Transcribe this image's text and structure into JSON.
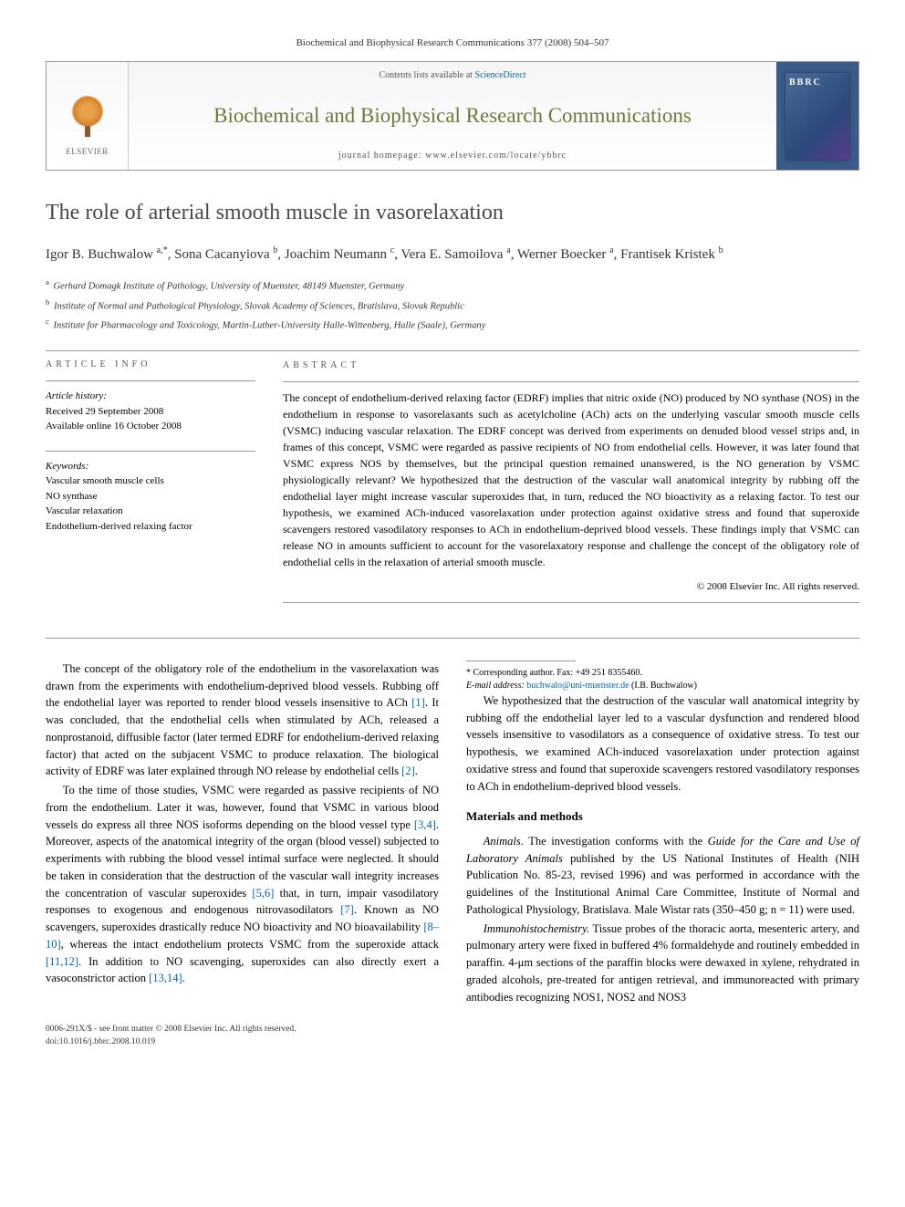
{
  "header_citation": "Biochemical and Biophysical Research Communications 377 (2008) 504–507",
  "banner": {
    "contents_prefix": "Contents lists available at ",
    "contents_link": "ScienceDirect",
    "journal_title": "Biochemical and Biophysical Research Communications",
    "homepage_prefix": "journal homepage: ",
    "homepage_url": "www.elsevier.com/locate/ybbrc",
    "publisher": "ELSEVIER",
    "cover_label": "BBRC"
  },
  "article": {
    "title": "The role of arterial smooth muscle in vasorelaxation",
    "authors_html": "Igor B. Buchwalow <sup>a,*</sup>, Sona Cacanyiova <sup>b</sup>, Joachim Neumann <sup>c</sup>, Vera E. Samoilova <sup>a</sup>, Werner Boecker <sup>a</sup>, Frantisek Kristek <sup>b</sup>",
    "affiliations": [
      {
        "sup": "a",
        "text": "Gerhard Domagk Institute of Pathology, University of Muenster, 48149 Muenster, Germany"
      },
      {
        "sup": "b",
        "text": "Institute of Normal and Pathological Physiology, Slovak Academy of Sciences, Bratislava, Slovak Republic"
      },
      {
        "sup": "c",
        "text": "Institute for Pharmacology and Toxicology, Martin-Luther-University Halle-Wittenberg, Halle (Saale), Germany"
      }
    ]
  },
  "info": {
    "heading": "ARTICLE INFO",
    "history_label": "Article history:",
    "received": "Received 29 September 2008",
    "online": "Available online 16 October 2008",
    "keywords_label": "Keywords:",
    "keywords": [
      "Vascular smooth muscle cells",
      "NO synthase",
      "Vascular relaxation",
      "Endothelium-derived relaxing factor"
    ]
  },
  "abstract": {
    "heading": "ABSTRACT",
    "text": "The concept of endothelium-derived relaxing factor (EDRF) implies that nitric oxide (NO) produced by NO synthase (NOS) in the endothelium in response to vasorelaxants such as acetylcholine (ACh) acts on the underlying vascular smooth muscle cells (VSMC) inducing vascular relaxation. The EDRF concept was derived from experiments on denuded blood vessel strips and, in frames of this concept, VSMC were regarded as passive recipients of NO from endothelial cells. However, it was later found that VSMC express NOS by themselves, but the principal question remained unanswered, is the NO generation by VSMC physiologically relevant? We hypothesized that the destruction of the vascular wall anatomical integrity by rubbing off the endothelial layer might increase vascular superoxides that, in turn, reduced the NO bioactivity as a relaxing factor. To test our hypothesis, we examined ACh-induced vasorelaxation under protection against oxidative stress and found that superoxide scavengers restored vasodilatory responses to ACh in endothelium-deprived blood vessels. These findings imply that VSMC can release NO in amounts sufficient to account for the vasorelaxatory response and challenge the concept of the obligatory role of endothelial cells in the relaxation of arterial smooth muscle.",
    "copyright": "© 2008 Elsevier Inc. All rights reserved."
  },
  "body": {
    "p1": "The concept of the obligatory role of the endothelium in the vasorelaxation was drawn from the experiments with endothelium-deprived blood vessels. Rubbing off the endothelial layer was reported to render blood vessels insensitive to ACh [1]. It was concluded, that the endothelial cells when stimulated by ACh, released a nonprostanoid, diffusible factor (later termed EDRF for endothelium-derived relaxing factor) that acted on the subjacent VSMC to produce relaxation. The biological activity of EDRF was later explained through NO release by endothelial cells [2].",
    "p2": "To the time of those studies, VSMC were regarded as passive recipients of NO from the endothelium. Later it was, however, found that VSMC in various blood vessels do express all three NOS isoforms depending on the blood vessel type [3,4]. Moreover, aspects of the anatomical integrity of the organ (blood vessel) subjected to experiments with rubbing the blood vessel intimal surface were neglected. It should be taken in consideration that the destruction of the vascular wall integrity increases the concentration of vascular superoxides [5,6] that, in turn, impair vasodilatory responses to exogenous and endogenous nitrovasodilators [7]. Known as NO scavengers, superoxides drastically reduce NO bioactivity and NO bioavailability [8–10], whereas the intact endothelium protects VSMC from the superoxide attack [11,12]. In addition to NO scavenging, superoxides can also directly exert a vasoconstrictor action [13,14].",
    "p3": "We hypothesized that the destruction of the vascular wall anatomical integrity by rubbing off the endothelial layer led to a vascular dysfunction and rendered blood vessels insensitive to vasodilators as a consequence of oxidative stress. To test our hypothesis, we examined ACh-induced vasorelaxation under protection against oxidative stress and found that superoxide scavengers restored vasodilatory responses to ACh in endothelium-deprived blood vessels.",
    "methods_heading": "Materials and methods",
    "p4_label": "Animals.",
    "p4": " The investigation conforms with the Guide for the Care and Use of Laboratory Animals published by the US National Institutes of Health (NIH Publication No. 85-23, revised 1996) and was performed in accordance with the guidelines of the Institutional Animal Care Committee, Institute of Normal and Pathological Physiology, Bratislava. Male Wistar rats (350–450 g; n = 11) were used.",
    "p5_label": "Immunohistochemistry.",
    "p5": " Tissue probes of the thoracic aorta, mesenteric artery, and pulmonary artery were fixed in buffered 4% formaldehyde and routinely embedded in paraffin. 4-μm sections of the paraffin blocks were dewaxed in xylene, rehydrated in graded alcohols, pre-treated for antigen retrieval, and immunoreacted with primary antibodies recognizing NOS1, NOS2 and NOS3"
  },
  "footnotes": {
    "corr": "* Corresponding author. Fax: +49 251 8355460.",
    "email_label": "E-mail address: ",
    "email": "buchwalo@uni-muenster.de",
    "email_person": " (I.B. Buchwalow)"
  },
  "footer": {
    "line1": "0006-291X/$ - see front matter © 2008 Elsevier Inc. All rights reserved.",
    "line2": "doi:10.1016/j.bbrc.2008.10.019"
  },
  "colors": {
    "link": "#0066aa",
    "journal_title": "#6b7a3a",
    "rule": "#999999"
  }
}
